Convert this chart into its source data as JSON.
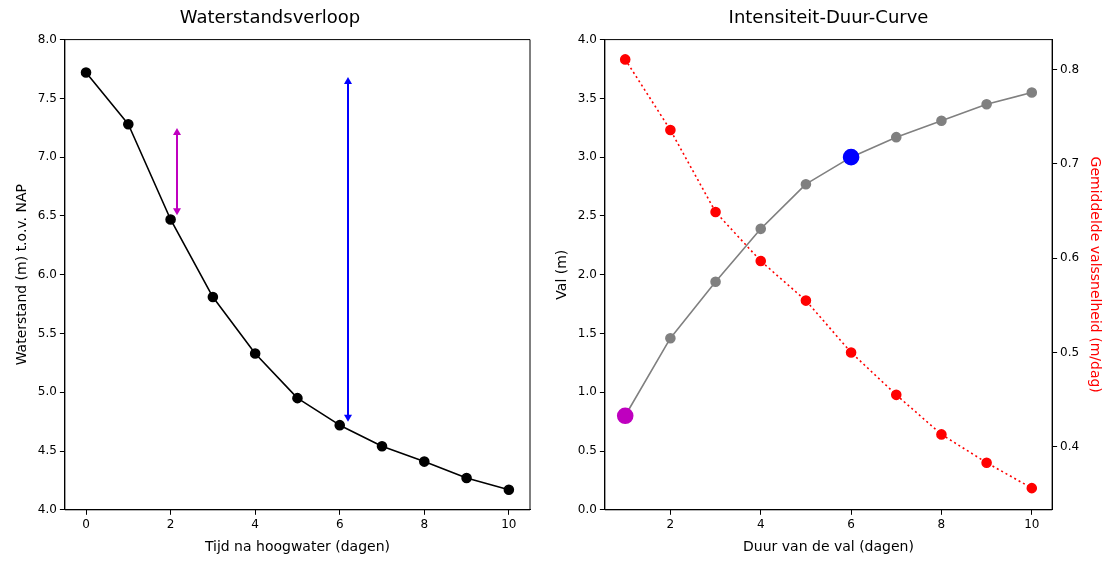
{
  "chart_data": [
    {
      "type": "line",
      "title": "Waterstandsverloop",
      "xlabel": "Tijd na hoogwater (dagen)",
      "ylabel": "Waterstand (m) t.o.v. NAP",
      "x": [
        0,
        1,
        2,
        3,
        4,
        5,
        6,
        7,
        8,
        9,
        10
      ],
      "series": [
        {
          "color": "#000000",
          "values": [
            7.72,
            7.28,
            6.47,
            5.81,
            5.33,
            4.95,
            4.72,
            4.54,
            4.41,
            4.27,
            4.17
          ]
        }
      ],
      "xlim": [
        -0.5,
        10.5
      ],
      "xticks": [
        0,
        2,
        4,
        6,
        8,
        10
      ],
      "ylim": [
        4,
        8
      ],
      "yticks": [
        {
          "value": 4,
          "label": "4.0"
        },
        {
          "value": 4.5,
          "label": "4.5"
        },
        {
          "value": 5,
          "label": "5.0"
        },
        {
          "value": 5.5,
          "label": "5.5"
        },
        {
          "value": 6,
          "label": "6.0"
        },
        {
          "value": 6.5,
          "label": "6.5"
        },
        {
          "value": 7,
          "label": "7.0"
        },
        {
          "value": 7.5,
          "label": "7.5"
        },
        {
          "value": 8,
          "label": "8.0"
        }
      ],
      "marker": "circle"
    },
    {
      "type": "line",
      "title": "Intensiteit-Duur-Curve",
      "xlabel": "Duur van de val (dagen)",
      "ylabel": "Val (m)",
      "y2label": "Gemiddelde valssnelheid (m/dag)",
      "x": [
        1,
        2,
        3,
        4,
        5,
        6,
        7,
        8,
        9,
        10
      ],
      "series": [
        {
          "color": "#808080",
          "colors": [
            "#bf00bf",
            "#808080",
            "#808080",
            "#808080",
            "#808080",
            "#0000ff",
            "#808080",
            "#808080",
            "#808080",
            "#808080"
          ],
          "values": [
            0.8,
            1.46,
            1.94,
            2.39,
            2.77,
            3.0,
            3.17,
            3.31,
            3.45,
            3.55
          ]
        },
        {
          "color": "#ff0000",
          "axis": "y2",
          "line_style": "dotted",
          "values": [
            0.811,
            0.736,
            0.649,
            0.597,
            0.555,
            0.5,
            0.455,
            0.413,
            0.383,
            0.356
          ]
        }
      ],
      "xlim": [
        0.55,
        10.45
      ],
      "xticks": [
        2,
        4,
        6,
        8,
        10
      ],
      "ylim": [
        0,
        4
      ],
      "yticks": [
        {
          "value": 0,
          "label": "0.0"
        },
        {
          "value": 0.5,
          "label": "0.5"
        },
        {
          "value": 1,
          "label": "1.0"
        },
        {
          "value": 1.5,
          "label": "1.5"
        },
        {
          "value": 2,
          "label": "2.0"
        },
        {
          "value": 2.5,
          "label": "2.5"
        },
        {
          "value": 3,
          "label": "3.0"
        },
        {
          "value": 3.5,
          "label": "3.5"
        },
        {
          "value": 4,
          "label": "4.0"
        }
      ],
      "y2lim": [
        0.333,
        0.832
      ],
      "y2ticks": [
        0.4,
        0.5,
        0.6,
        0.7,
        0.8
      ],
      "marker": "circle"
    }
  ]
}
